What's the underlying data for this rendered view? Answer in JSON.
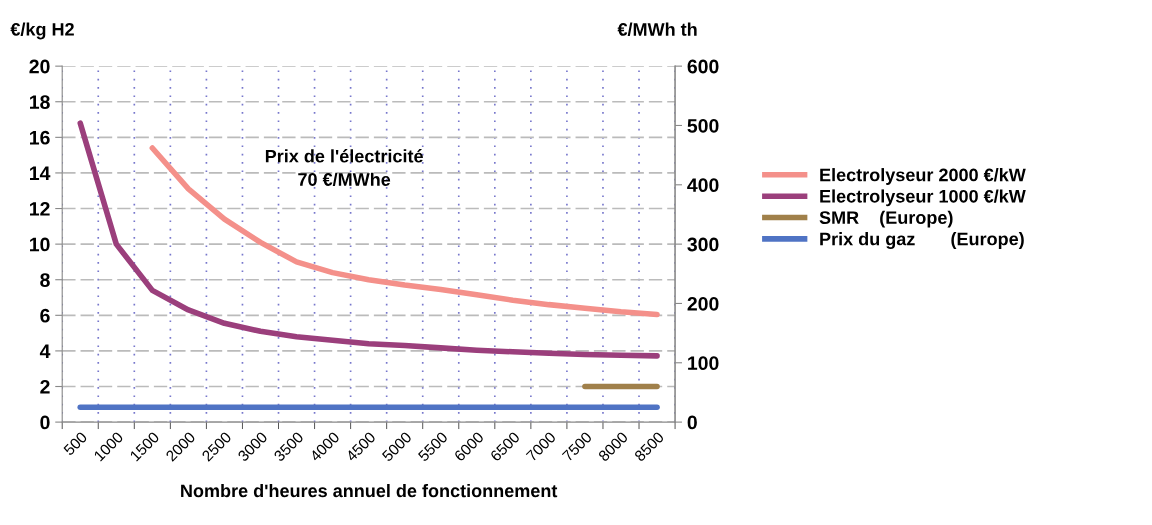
{
  "chart_data": {
    "type": "line",
    "xlabel": "Nombre d'heures annuel de fonctionnement",
    "ylabel": "€/kg H2",
    "y2label": "€/MWh th",
    "categories": [
      "500",
      "1000",
      "1500",
      "2000",
      "2500",
      "3000",
      "3500",
      "4000",
      "4500",
      "5000",
      "5500",
      "6000",
      "6500",
      "7000",
      "7500",
      "8000",
      "8500"
    ],
    "series": [
      {
        "name": "Electrolyseur 2000 €/kW",
        "color": "#f4908a",
        "values": [
          null,
          null,
          15.4,
          13.1,
          11.4,
          10.1,
          9.0,
          8.4,
          8.0,
          7.7,
          7.45,
          7.15,
          6.85,
          6.6,
          6.4,
          6.2,
          6.05
        ]
      },
      {
        "name": "Electrolyseur 1000 €/kW",
        "color": "#9b3f7c",
        "values": [
          16.8,
          10.0,
          7.4,
          6.3,
          5.55,
          5.1,
          4.8,
          4.6,
          4.4,
          4.3,
          4.17,
          4.04,
          3.95,
          3.87,
          3.8,
          3.76,
          3.72
        ]
      },
      {
        "name": "SMR    (Europe)",
        "color": "#a0804a",
        "values": [
          null,
          null,
          null,
          null,
          null,
          null,
          null,
          null,
          null,
          null,
          null,
          null,
          null,
          null,
          2.0,
          2.0,
          2.0
        ]
      },
      {
        "name": "Prix du gaz       (Europe)",
        "color": "#4f73c4",
        "axis": "y2",
        "values": [
          25,
          25,
          25,
          25,
          25,
          25,
          25,
          25,
          25,
          25,
          25,
          25,
          25,
          25,
          25,
          25,
          25
        ]
      }
    ],
    "ylim": [
      0,
      20
    ],
    "yticks": [
      0,
      2,
      4,
      6,
      8,
      10,
      12,
      14,
      16,
      18,
      20
    ],
    "y2lim": [
      0,
      600
    ],
    "y2ticks": [
      0,
      100,
      200,
      300,
      400,
      500,
      600
    ],
    "grid": true,
    "legend": "right",
    "line_style": "solid",
    "annotations": [
      "Prix de l'électricité\n70 €/MWhe"
    ]
  }
}
